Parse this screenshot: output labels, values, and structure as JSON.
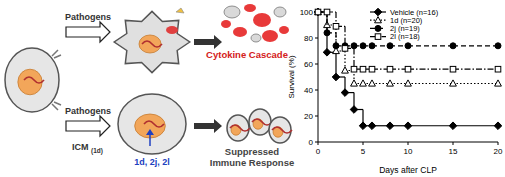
{
  "chart_data": {
    "type": "step",
    "x_label": "Days after CLP",
    "y_label": "Survival (%)",
    "x": [
      0,
      1,
      2,
      3,
      4,
      5,
      6,
      8,
      10,
      15,
      20
    ],
    "series": [
      {
        "name": "Vehicle (n=16)",
        "color": "#000000",
        "marker": "filled-diamond",
        "line_style": "solid",
        "values": [
          100,
          69,
          50,
          38,
          25,
          12.5,
          12.5,
          12.5,
          12.5,
          12.5,
          12.5
        ]
      },
      {
        "name": "1d (n=20)",
        "color": "#000000",
        "marker": "open-triangle",
        "line_style": "dotted",
        "values": [
          100,
          90,
          70,
          55,
          45,
          45,
          45,
          45,
          45,
          45,
          45
        ]
      },
      {
        "name": "2j (n=19)",
        "color": "#000000",
        "marker": "filled-circle",
        "line_style": "dashed",
        "values": [
          100,
          84,
          74,
          74,
          74,
          74,
          74,
          74,
          74,
          74,
          74
        ]
      },
      {
        "name": "2l (n=18)",
        "color": "#000000",
        "marker": "open-square",
        "line_style": "dashdot",
        "values": [
          100,
          100,
          89,
          72,
          56,
          56,
          56,
          56,
          56,
          56,
          56
        ]
      }
    ],
    "xlim": [
      0,
      20
    ],
    "xticks": [
      0,
      5,
      10,
      15,
      20
    ],
    "ylim": [
      0,
      100
    ],
    "yticks": [
      0,
      20,
      40,
      60,
      80,
      100
    ],
    "legend": "upper right",
    "grid": false
  },
  "diagram": {
    "top": {
      "arrow_label": "Pathogens",
      "outcome": "Cytokine Cascade"
    },
    "bottom": {
      "arrow_label": "Pathogens",
      "treatment": "ICM",
      "treatment_subscript": "(1d)",
      "compounds": "1d, 2j, 2l",
      "outcome": [
        "Suppressed",
        "Immune Response"
      ]
    }
  }
}
